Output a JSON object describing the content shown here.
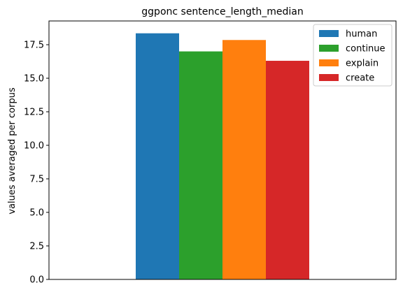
{
  "chart_data": {
    "type": "bar",
    "title": "ggponc sentence_length_median",
    "xlabel": "",
    "ylabel": "values averaged per corpus",
    "categories": [
      ""
    ],
    "series": [
      {
        "name": "human",
        "values": [
          18.35
        ],
        "color": "#1f77b4"
      },
      {
        "name": "continue",
        "values": [
          17.0
        ],
        "color": "#2ca02c"
      },
      {
        "name": "explain",
        "values": [
          17.85
        ],
        "color": "#ff7f0e"
      },
      {
        "name": "create",
        "values": [
          16.3
        ],
        "color": "#d62728"
      }
    ],
    "ylim": [
      0,
      19.27
    ],
    "yticks": [
      0.0,
      2.5,
      5.0,
      7.5,
      10.0,
      12.5,
      15.0,
      17.5
    ],
    "ytick_labels": [
      "0.0",
      "2.5",
      "5.0",
      "7.5",
      "10.0",
      "12.5",
      "15.0",
      "17.5"
    ],
    "grid": false,
    "legend_position": "top-right"
  }
}
